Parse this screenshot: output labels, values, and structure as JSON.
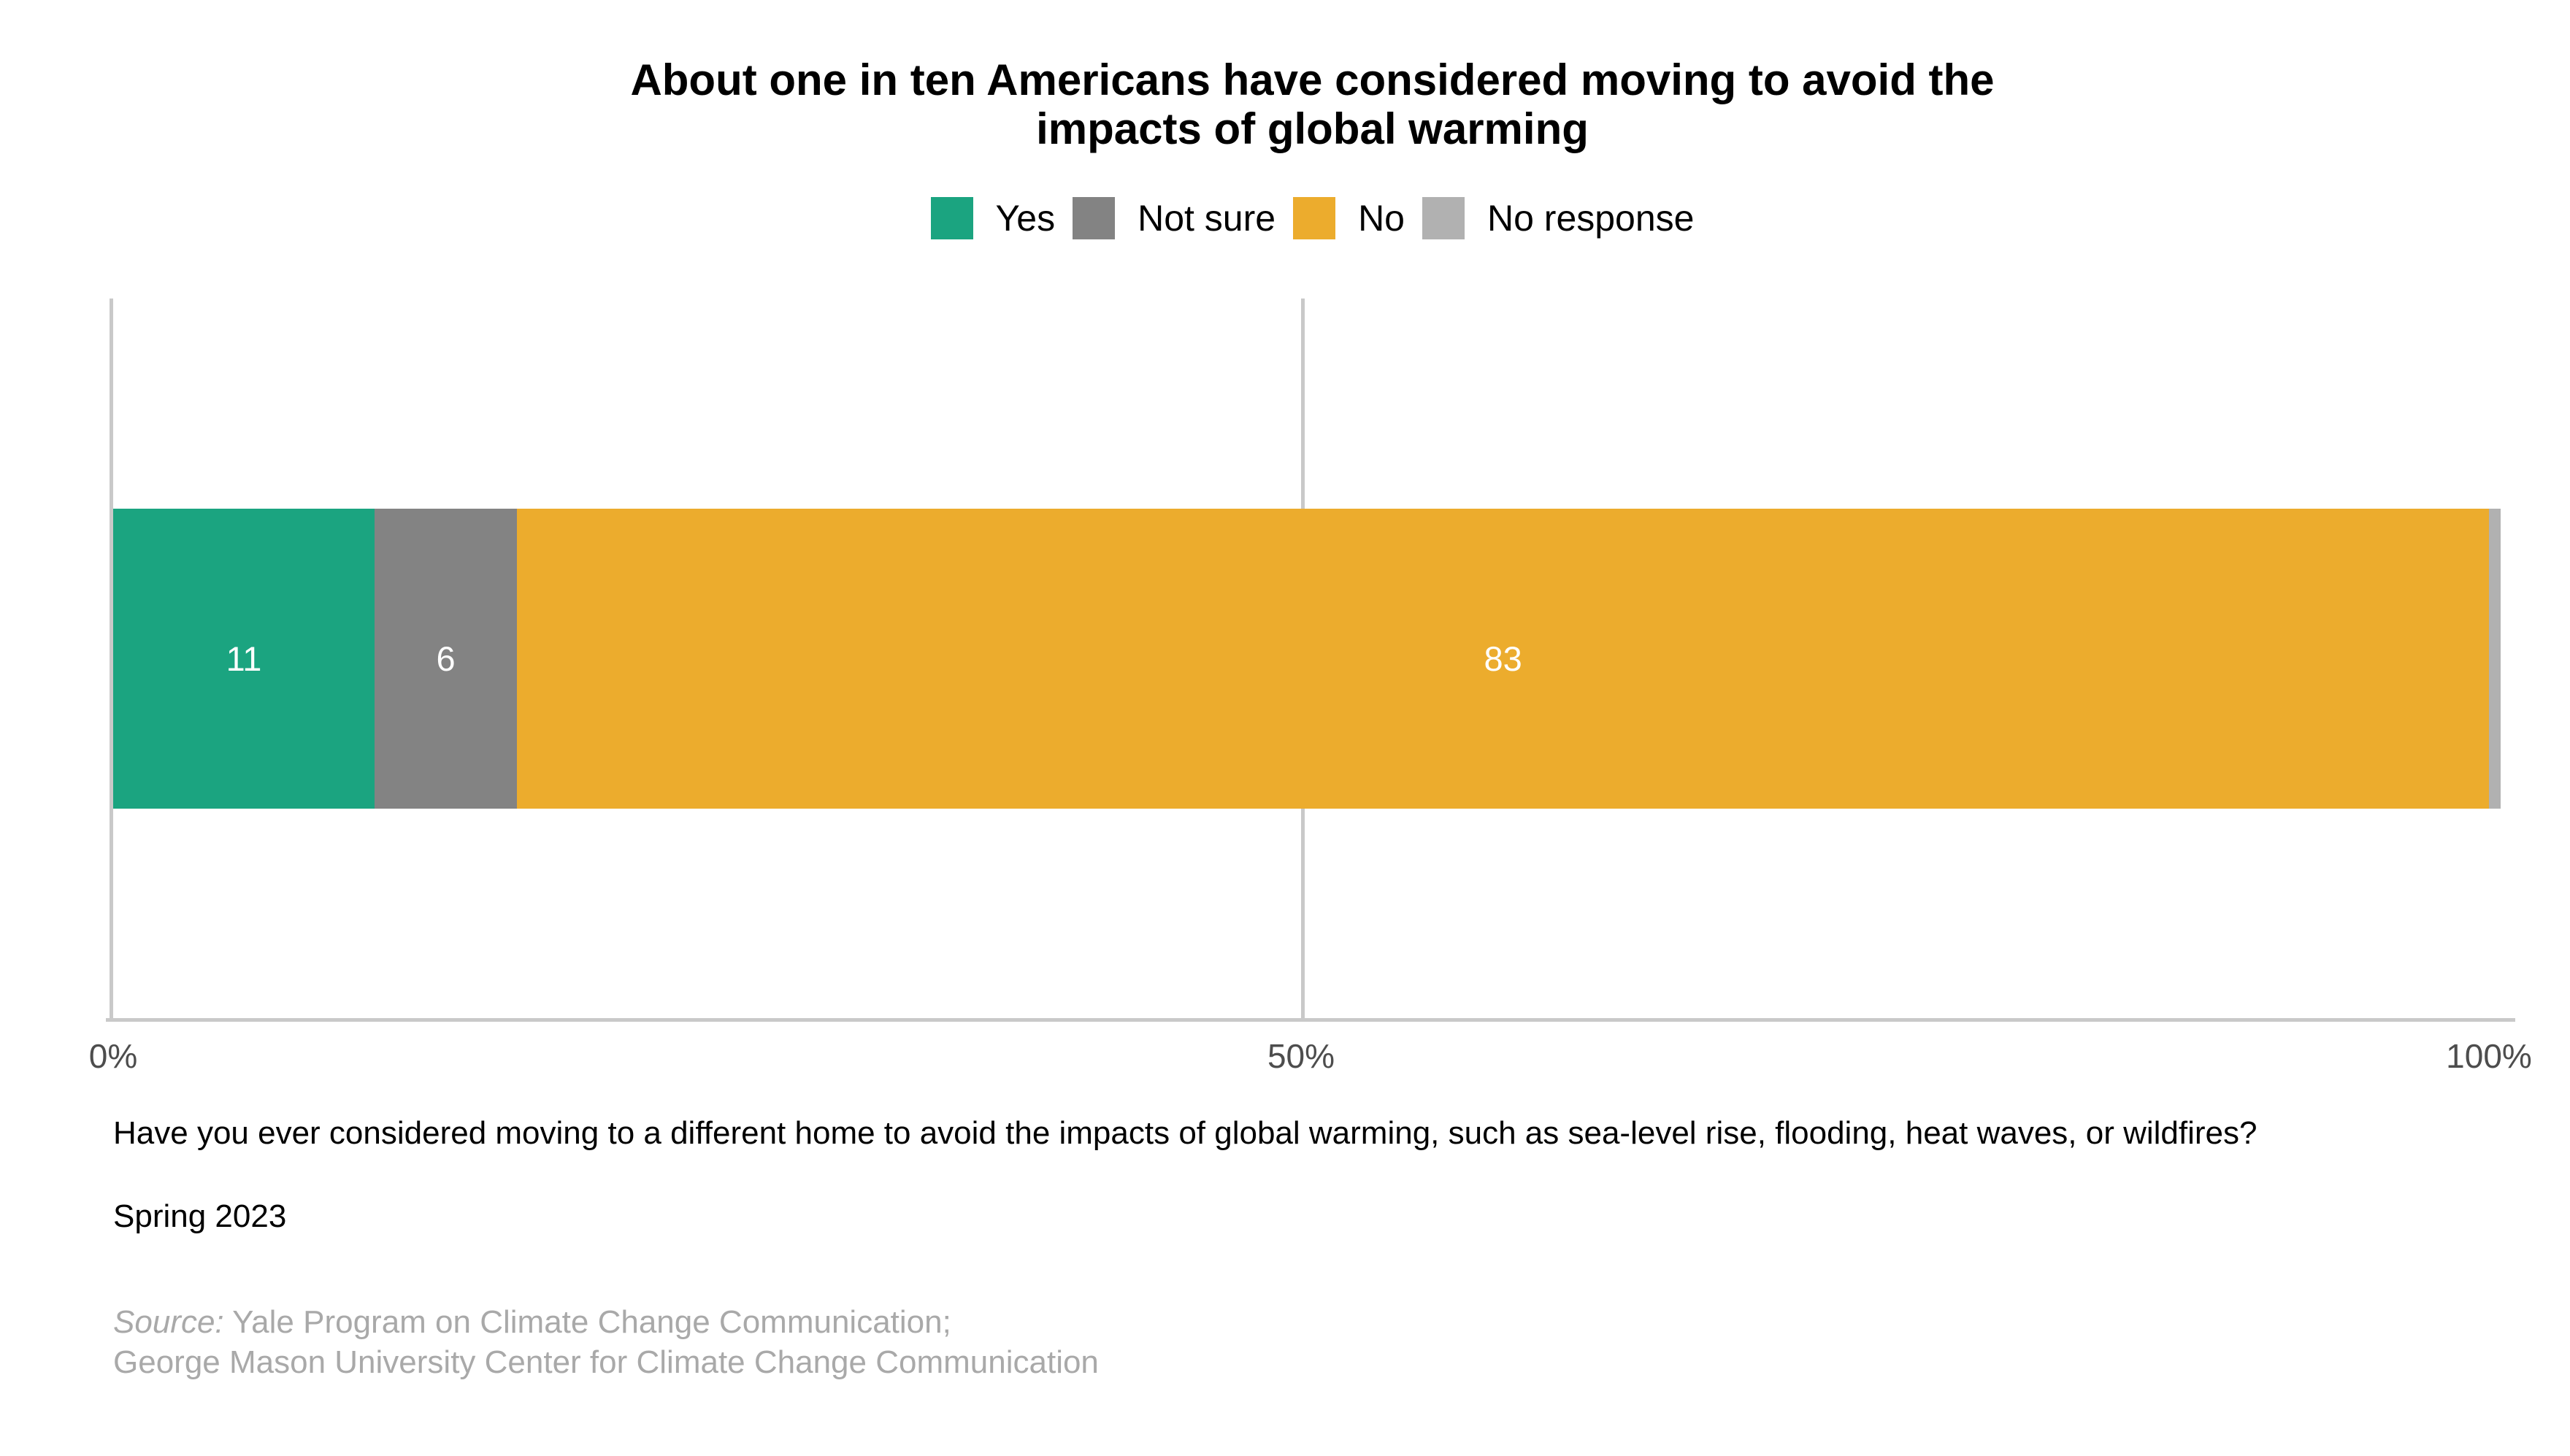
{
  "title": {
    "line1": "About one in ten Americans have considered moving to avoid the",
    "line2": "impacts of global warming"
  },
  "chart_data": {
    "type": "bar",
    "orientation": "horizontal",
    "stacked": true,
    "title": "About one in ten Americans have considered moving to avoid the impacts of global warming",
    "series": [
      {
        "name": "Yes",
        "value": 11,
        "label": "11",
        "color": "#1ba480"
      },
      {
        "name": "Not sure",
        "value": 6,
        "label": "6",
        "color": "#838383"
      },
      {
        "name": "No",
        "value": 83,
        "label": "83",
        "color": "#ecac2d"
      },
      {
        "name": "No response",
        "value": 0.5,
        "label": "",
        "color": "#b1b1b1"
      }
    ],
    "xlabel": "",
    "ylabel": "",
    "xlim": [
      0,
      100
    ],
    "x_ticks": [
      "0%",
      "50%",
      "100%"
    ],
    "x_tick_positions": [
      0,
      50,
      100
    ],
    "grid": "vertical gridline at 50%",
    "legend_position": "top"
  },
  "footer": {
    "question": "Have you ever considered moving to a different home to avoid the impacts of global warming, such as sea-level rise, flooding, heat waves, or wildfires?",
    "wave": "Spring 2023",
    "source_prefix": "Source:",
    "source_line1": "Yale Program on Climate Change Communication;",
    "source_line2": "George Mason University Center for Climate Change Communication"
  },
  "colors": {
    "axis_line": "#c9c9c9",
    "tick_text": "#4d4d4d",
    "bar_label_text": "#ffffff",
    "source_text": "#a9a9a9"
  }
}
